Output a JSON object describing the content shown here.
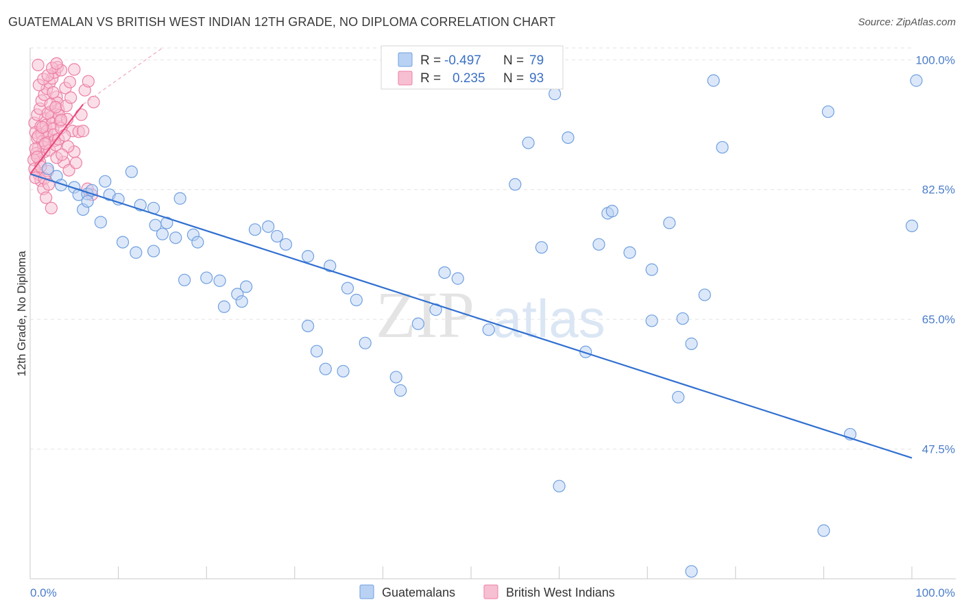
{
  "title": "GUATEMALAN VS BRITISH WEST INDIAN 12TH GRADE, NO DIPLOMA CORRELATION CHART",
  "source": "Source: ZipAtlas.com",
  "watermark": {
    "zip": "ZIP",
    "atlas": "atlas"
  },
  "colors": {
    "blue_fill": "#b9d2f3",
    "blue_stroke": "#6f9fe0",
    "blue_line": "#2f6fd0",
    "pink_fill": "#f7bfd2",
    "pink_stroke": "#ec7fa4",
    "pink_line": "#e8487a",
    "grid": "#e2e2e2",
    "tick_text": "#4a7cc9"
  },
  "legend_box": {
    "rows": [
      {
        "r_label": "R =",
        "r_value": "-0.497",
        "n_label": "N =",
        "n_value": "79",
        "series": "blue"
      },
      {
        "r_label": "R =",
        "r_value": "0.235",
        "n_label": "N =",
        "n_value": "93",
        "series": "pink"
      }
    ]
  },
  "chart_data": {
    "type": "scatter",
    "title": "GUATEMALAN VS BRITISH WEST INDIAN 12TH GRADE, NO DIPLOMA CORRELATION CHART",
    "xlabel": "",
    "ylabel": "12th Grade, No Diploma",
    "xlim": [
      0,
      100
    ],
    "ylim": [
      30,
      101.6
    ],
    "x_tick_labels": [
      "0.0%",
      "100.0%"
    ],
    "y_ticks": [
      47.5,
      65.0,
      82.5,
      100.0
    ],
    "y_tick_labels": [
      "47.5%",
      "65.0%",
      "82.5%",
      "100.0%"
    ],
    "grid": true,
    "legend_position": "bottom",
    "series": [
      {
        "name": "Guatemalans",
        "color": "#6f9fe0",
        "r": -0.497,
        "n": 79,
        "trend": {
          "x": [
            0,
            100
          ],
          "y": [
            84.6,
            46.3
          ]
        },
        "points": [
          [
            2.0,
            85.3
          ],
          [
            3.0,
            84.3
          ],
          [
            3.5,
            83.1
          ],
          [
            5.0,
            82.8
          ],
          [
            5.5,
            81.8
          ],
          [
            6.5,
            81.9
          ],
          [
            7.0,
            82.4
          ],
          [
            8.5,
            83.6
          ],
          [
            9.0,
            81.8
          ],
          [
            10.0,
            81.2
          ],
          [
            11.5,
            84.9
          ],
          [
            12.5,
            80.4
          ],
          [
            14.0,
            80.0
          ],
          [
            15.5,
            78.0
          ],
          [
            14.2,
            77.7
          ],
          [
            15.0,
            76.5
          ],
          [
            14.0,
            74.2
          ],
          [
            12.0,
            74.0
          ],
          [
            10.5,
            75.4
          ],
          [
            8.0,
            78.1
          ],
          [
            6.0,
            79.8
          ],
          [
            6.5,
            80.9
          ],
          [
            17.0,
            81.3
          ],
          [
            16.5,
            76.0
          ],
          [
            18.5,
            76.4
          ],
          [
            19.0,
            75.4
          ],
          [
            20.0,
            70.6
          ],
          [
            17.5,
            70.3
          ],
          [
            21.5,
            70.2
          ],
          [
            22.0,
            66.7
          ],
          [
            23.5,
            68.4
          ],
          [
            24.5,
            69.4
          ],
          [
            25.5,
            77.1
          ],
          [
            24.0,
            67.4
          ],
          [
            27.0,
            77.5
          ],
          [
            28.0,
            76.2
          ],
          [
            29.0,
            75.1
          ],
          [
            31.5,
            73.5
          ],
          [
            34.0,
            72.2
          ],
          [
            36.0,
            69.2
          ],
          [
            37.0,
            67.6
          ],
          [
            31.5,
            64.1
          ],
          [
            32.5,
            60.7
          ],
          [
            33.5,
            58.3
          ],
          [
            35.5,
            58.0
          ],
          [
            38.0,
            61.8
          ],
          [
            41.5,
            57.2
          ],
          [
            42.0,
            55.4
          ],
          [
            44.0,
            64.4
          ],
          [
            46.0,
            66.3
          ],
          [
            47.0,
            71.3
          ],
          [
            48.5,
            70.5
          ],
          [
            52.0,
            63.6
          ],
          [
            55.0,
            83.2
          ],
          [
            56.5,
            88.8
          ],
          [
            58.0,
            74.7
          ],
          [
            59.5,
            95.4
          ],
          [
            61.0,
            89.5
          ],
          [
            63.0,
            60.6
          ],
          [
            64.5,
            75.1
          ],
          [
            65.5,
            79.3
          ],
          [
            66.0,
            79.6
          ],
          [
            68.0,
            74.0
          ],
          [
            70.5,
            71.7
          ],
          [
            70.5,
            64.8
          ],
          [
            72.5,
            78.0
          ],
          [
            73.5,
            54.5
          ],
          [
            74.0,
            65.1
          ],
          [
            75.0,
            61.7
          ],
          [
            76.5,
            68.3
          ],
          [
            77.5,
            97.2
          ],
          [
            78.5,
            88.2
          ],
          [
            90.5,
            93.0
          ],
          [
            93.0,
            49.5
          ],
          [
            100.0,
            77.6
          ],
          [
            100.5,
            97.2
          ],
          [
            60.0,
            42.5
          ],
          [
            75.0,
            31.0
          ],
          [
            90.0,
            36.5
          ]
        ]
      },
      {
        "name": "British West Indians",
        "color": "#ec7fa4",
        "r": 0.235,
        "n": 93,
        "trend": {
          "x": [
            0,
            6.0
          ],
          "y": [
            84.6,
            94.0
          ]
        },
        "trend_dashed": {
          "x": [
            6.0,
            15.0
          ],
          "y": [
            94.0,
            101.6
          ]
        },
        "points": [
          [
            0.5,
            91.5
          ],
          [
            0.6,
            90.2
          ],
          [
            0.8,
            89.4
          ],
          [
            0.9,
            88.1
          ],
          [
            1.0,
            87.0
          ],
          [
            1.1,
            86.2
          ],
          [
            1.2,
            91.0
          ],
          [
            1.3,
            90.0
          ],
          [
            1.4,
            89.0
          ],
          [
            1.5,
            88.3
          ],
          [
            1.6,
            87.6
          ],
          [
            1.7,
            92.1
          ],
          [
            1.8,
            91.2
          ],
          [
            1.9,
            90.4
          ],
          [
            2.0,
            89.6
          ],
          [
            2.1,
            88.9
          ],
          [
            2.2,
            87.8
          ],
          [
            2.3,
            93.0
          ],
          [
            2.4,
            92.3
          ],
          [
            2.5,
            91.4
          ],
          [
            2.6,
            90.7
          ],
          [
            2.7,
            89.9
          ],
          [
            2.8,
            89.1
          ],
          [
            2.9,
            88.5
          ],
          [
            3.0,
            95.0
          ],
          [
            3.1,
            94.2
          ],
          [
            3.2,
            93.3
          ],
          [
            3.3,
            92.5
          ],
          [
            3.4,
            91.7
          ],
          [
            3.5,
            90.8
          ],
          [
            0.7,
            87.4
          ],
          [
            1.0,
            84.5
          ],
          [
            1.2,
            83.7
          ],
          [
            1.5,
            82.6
          ],
          [
            1.8,
            81.4
          ],
          [
            2.0,
            85.0
          ],
          [
            0.4,
            86.5
          ],
          [
            0.5,
            85.3
          ],
          [
            0.6,
            84.1
          ],
          [
            0.8,
            92.6
          ],
          [
            1.1,
            93.4
          ],
          [
            1.3,
            94.5
          ],
          [
            1.6,
            95.3
          ],
          [
            1.9,
            96.1
          ],
          [
            2.2,
            96.9
          ],
          [
            2.5,
            97.5
          ],
          [
            2.8,
            98.3
          ],
          [
            3.1,
            99.0
          ],
          [
            3.5,
            98.6
          ],
          [
            4.0,
            96.2
          ],
          [
            4.5,
            97.0
          ],
          [
            5.0,
            98.7
          ],
          [
            4.2,
            92.0
          ],
          [
            4.8,
            90.4
          ],
          [
            5.5,
            90.3
          ],
          [
            6.0,
            90.4
          ],
          [
            5.0,
            87.6
          ],
          [
            4.3,
            88.3
          ],
          [
            3.8,
            86.2
          ],
          [
            6.5,
            82.6
          ],
          [
            7.0,
            81.8
          ],
          [
            2.4,
            80.0
          ],
          [
            3.0,
            86.8
          ],
          [
            3.6,
            87.2
          ],
          [
            4.4,
            85.1
          ],
          [
            0.9,
            89.7
          ],
          [
            1.4,
            90.9
          ],
          [
            1.7,
            88.7
          ],
          [
            2.0,
            92.8
          ],
          [
            2.3,
            94.0
          ],
          [
            2.6,
            95.6
          ],
          [
            2.9,
            93.6
          ],
          [
            3.2,
            89.3
          ],
          [
            3.5,
            91.9
          ],
          [
            3.9,
            89.8
          ],
          [
            4.1,
            93.8
          ],
          [
            4.6,
            94.9
          ],
          [
            5.2,
            86.1
          ],
          [
            5.8,
            92.6
          ],
          [
            6.2,
            95.9
          ],
          [
            6.6,
            97.1
          ],
          [
            7.2,
            94.3
          ],
          [
            1.0,
            96.6
          ],
          [
            1.5,
            97.4
          ],
          [
            2.0,
            97.9
          ],
          [
            2.5,
            98.9
          ],
          [
            3.0,
            99.5
          ],
          [
            0.6,
            88.0
          ],
          [
            0.8,
            86.9
          ],
          [
            1.2,
            85.6
          ],
          [
            1.6,
            84.0
          ],
          [
            2.1,
            83.2
          ],
          [
            0.9,
            99.3
          ]
        ]
      }
    ]
  },
  "bottom_legend": [
    {
      "label": "Guatemalans",
      "series": "blue"
    },
    {
      "label": "British West Indians",
      "series": "pink"
    }
  ]
}
